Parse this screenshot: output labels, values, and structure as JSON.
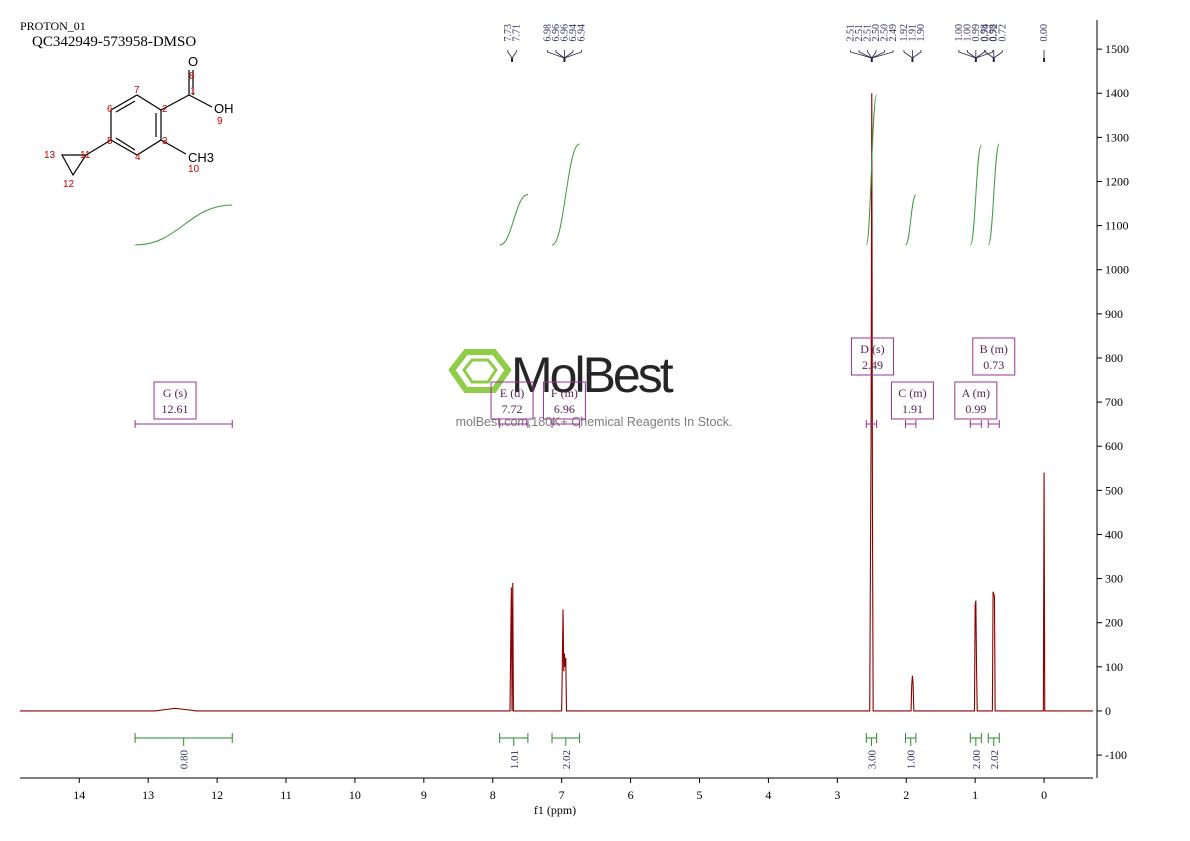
{
  "header": {
    "experiment": "PROTON_01",
    "sample": "QC342949-573958-DMSO"
  },
  "structure": {
    "atoms": [
      "O",
      "OH",
      "CH3"
    ],
    "numbers": [
      "8",
      "1",
      "9",
      "2",
      "3",
      "4",
      "5",
      "6",
      "7",
      "11",
      "12",
      "13",
      "10"
    ]
  },
  "watermark": {
    "brand": "MolBest",
    "tagline": "molBest.com,180K+ Chemical Reagents In Stock."
  },
  "chart_data": {
    "type": "nmr",
    "x_label": "f1 (ppm)",
    "color": "#8b0000",
    "xlim": [
      14.86,
      -0.71
    ],
    "xticks": [
      14,
      13,
      12,
      11,
      10,
      9,
      8,
      7,
      6,
      5,
      4,
      3,
      2,
      1,
      0
    ],
    "ylim": [
      -152,
      1566
    ],
    "yticks": [
      -100,
      0,
      100,
      200,
      300,
      400,
      500,
      600,
      700,
      800,
      900,
      1000,
      1100,
      1200,
      1300,
      1400,
      1500
    ],
    "x": [
      14.86,
      12.9,
      12.75,
      12.61,
      12.45,
      12.3,
      7.75,
      7.73,
      7.72,
      7.71,
      7.7,
      7.0,
      6.98,
      6.97,
      6.96,
      6.95,
      6.94,
      6.93,
      2.53,
      2.51,
      2.5,
      2.49,
      2.48,
      1.93,
      1.92,
      1.91,
      1.9,
      1.89,
      1.01,
      1.0,
      0.99,
      0.98,
      0.97,
      0.75,
      0.74,
      0.72,
      0.71,
      0.01,
      0.0,
      -0.01,
      -0.71
    ],
    "values": [
      0,
      0,
      3,
      6,
      3,
      0,
      0,
      280,
      0,
      290,
      0,
      0,
      230,
      90,
      130,
      100,
      120,
      0,
      0,
      640,
      1400,
      440,
      0,
      0,
      60,
      80,
      60,
      0,
      0,
      240,
      250,
      100,
      0,
      0,
      270,
      260,
      0,
      0,
      540,
      0,
      0
    ],
    "peak_groups": [
      {
        "ppm": 7.72,
        "labels": [
          "7.73",
          "7.71"
        ]
      },
      {
        "ppm": 6.96,
        "labels": [
          "6.98",
          "6.96",
          "6.96",
          "6.94",
          "6.94"
        ]
      },
      {
        "ppm": 2.5,
        "labels": [
          "2.51",
          "2.51",
          "2.51",
          "2.50",
          "2.50",
          "2.49"
        ]
      },
      {
        "ppm": 1.91,
        "labels": [
          "1.92",
          "1.91",
          "1.90"
        ]
      },
      {
        "ppm": 0.99,
        "labels": [
          "1.00",
          "1.00",
          "0.99",
          "0.98",
          "0.98"
        ]
      },
      {
        "ppm": 0.73,
        "labels": [
          "0.74",
          "0.72",
          "0.72"
        ]
      },
      {
        "ppm": 0,
        "labels": [
          "0.00"
        ]
      }
    ],
    "multiplets": [
      {
        "name": "G (s)",
        "shift": 12.61
      },
      {
        "name": "E (d)",
        "shift": 7.72
      },
      {
        "name": "F (m)",
        "shift": 6.96
      },
      {
        "name": "D (s)",
        "shift": 2.49
      },
      {
        "name": "C (m)",
        "shift": 1.91
      },
      {
        "name": "A (m)",
        "shift": 0.99
      },
      {
        "name": "B (m)",
        "shift": 0.73
      }
    ],
    "integrals": {
      "ranges": [
        [
          13.19,
          11.78
        ],
        [
          7.9,
          7.49
        ],
        [
          7.14,
          6.74
        ],
        [
          2.58,
          2.43
        ],
        [
          2.01,
          1.86
        ],
        [
          1.07,
          0.91
        ],
        [
          0.81,
          0.65
        ]
      ],
      "values": [
        0.8,
        1.01,
        2.02,
        3,
        1,
        2,
        2.02
      ],
      "value_labels": [
        "0.80",
        "1.01",
        "2.02",
        "3.00",
        "1.00",
        "2.00",
        "2.02"
      ]
    }
  }
}
